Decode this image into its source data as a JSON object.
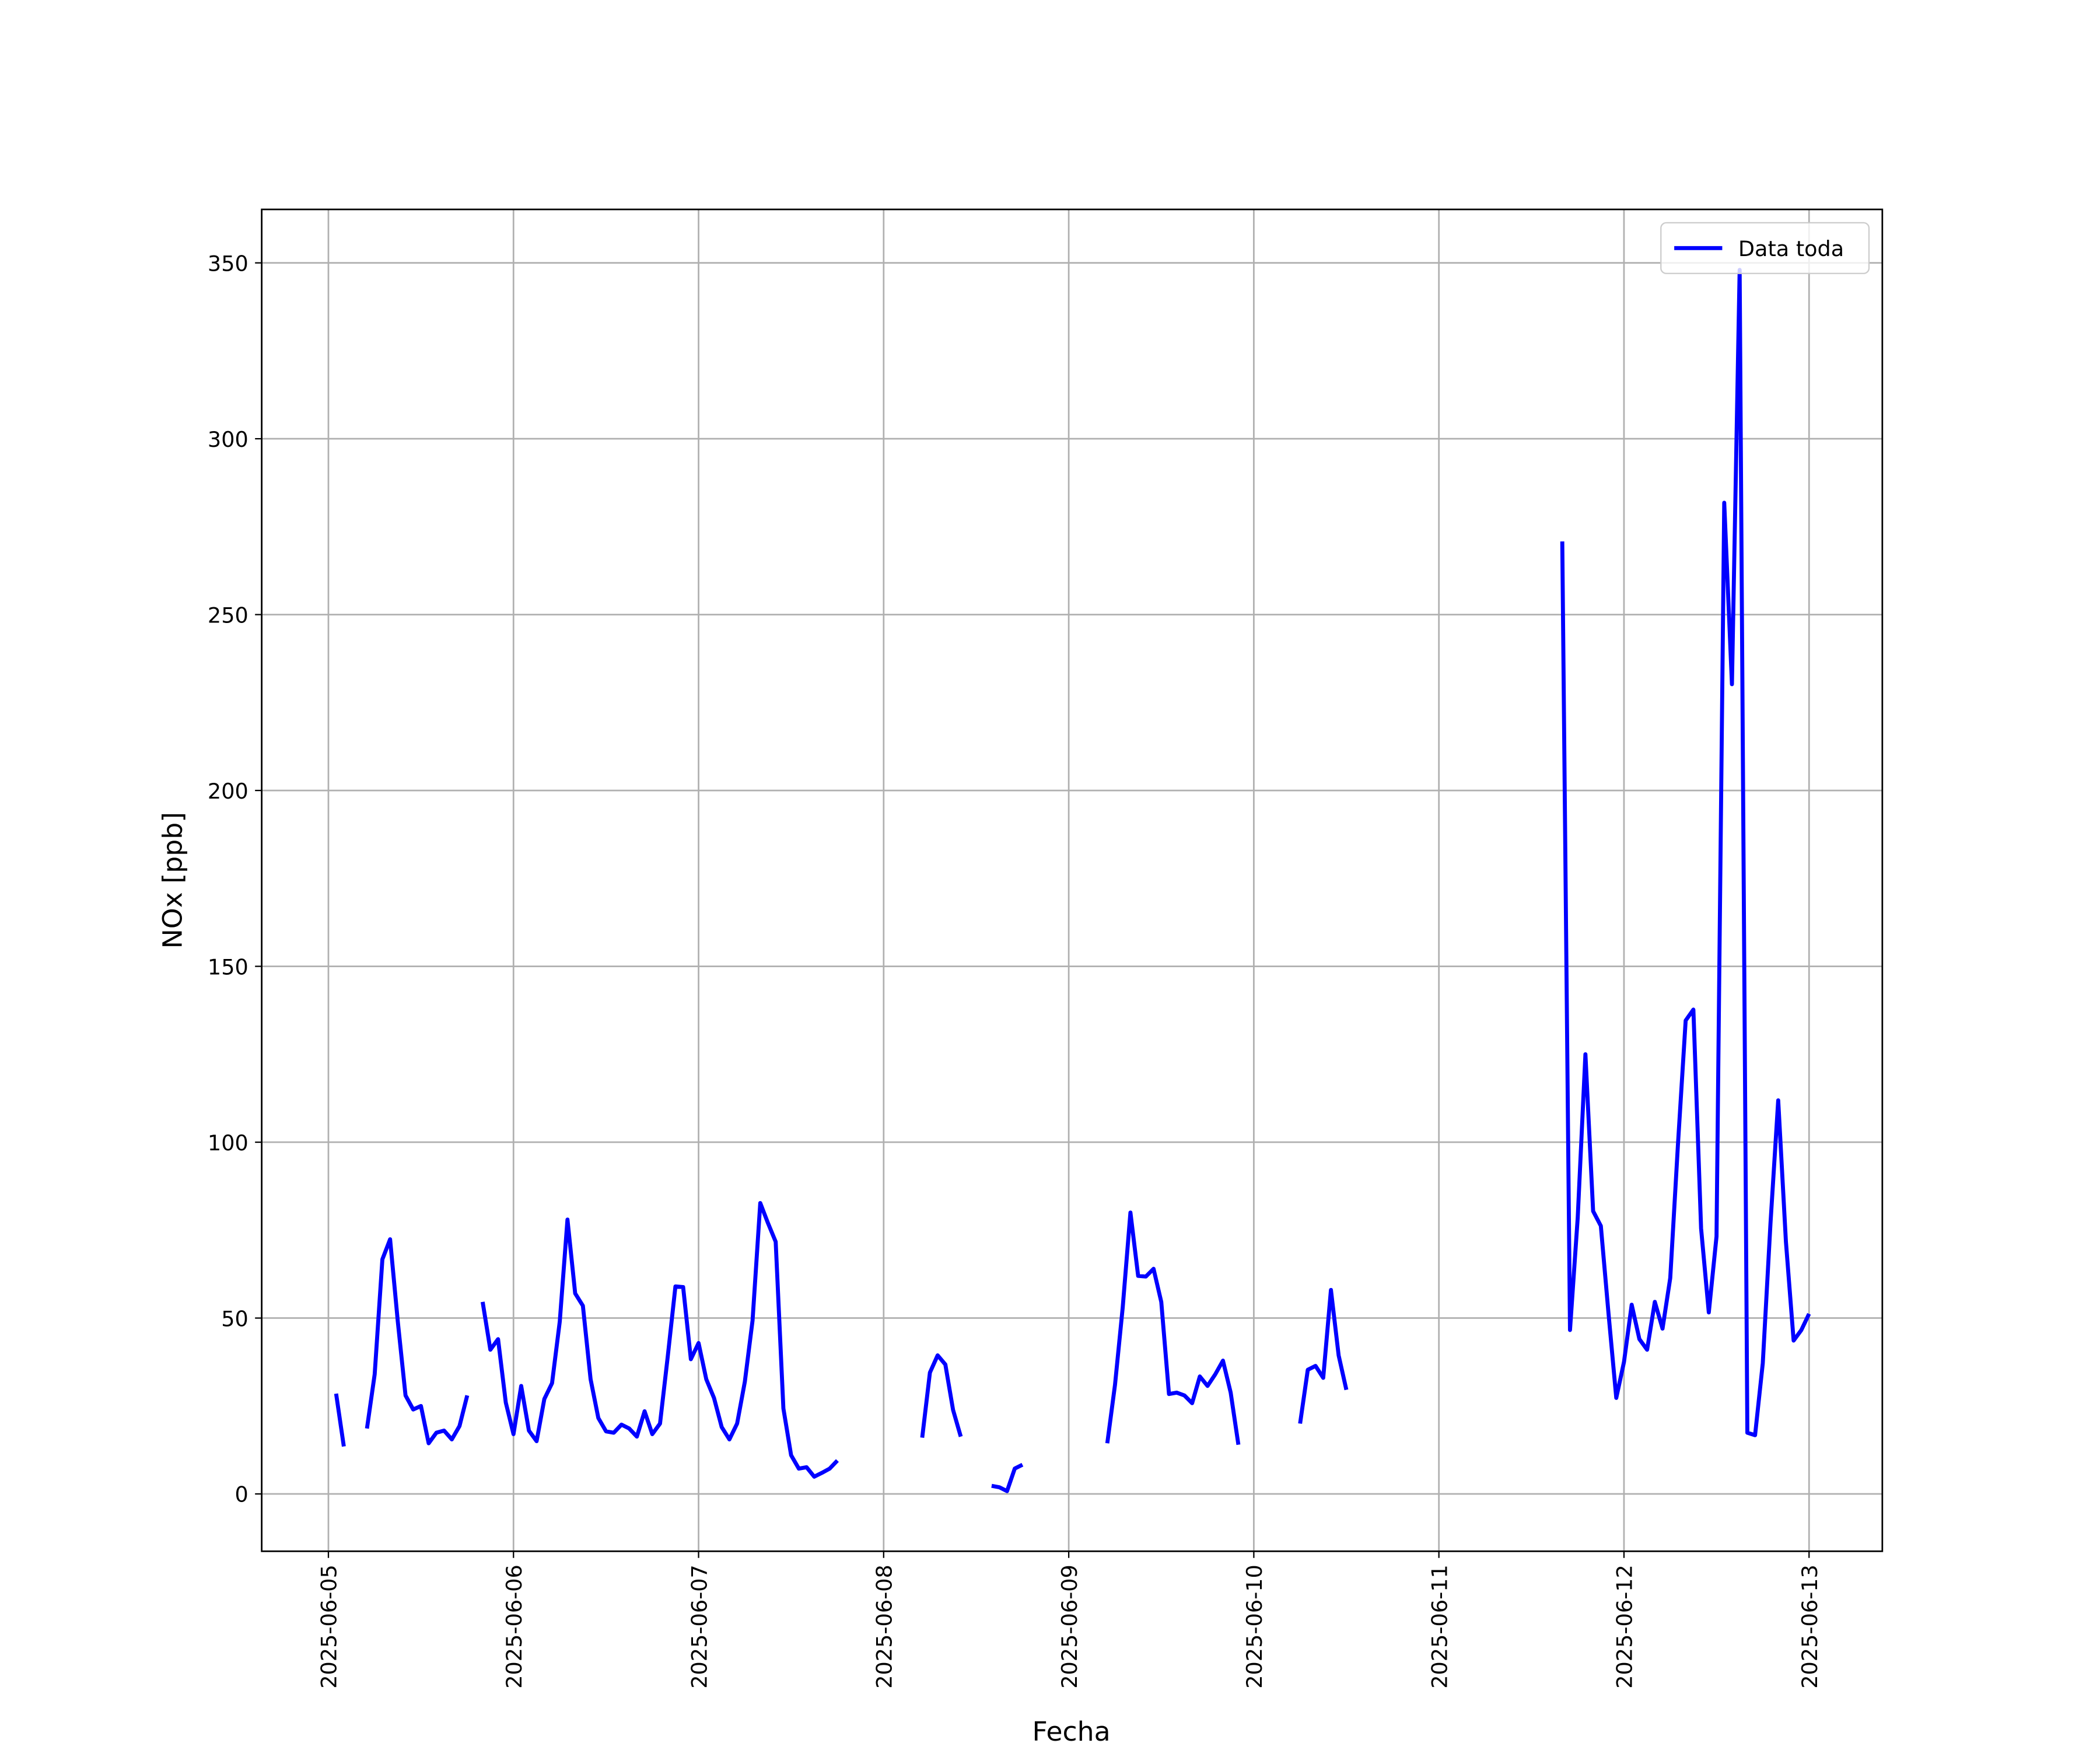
{
  "chart_data": {
    "type": "line",
    "xlabel": "Fecha",
    "ylabel": "NOx [ppb]",
    "xlim": [
      "2025-06-04 15:21",
      "2025-06-13 09:30"
    ],
    "xticks": [
      "2025-06-05",
      "2025-06-06",
      "2025-06-07",
      "2025-06-08",
      "2025-06-09",
      "2025-06-10",
      "2025-06-11",
      "2025-06-12",
      "2025-06-13"
    ],
    "ylim": [
      -16.3,
      365.2
    ],
    "yticks": [
      0,
      50,
      100,
      150,
      200,
      250,
      300,
      350
    ],
    "grid": true,
    "legend": "upper right",
    "x": [
      "2025-06-05 01:00",
      "2025-06-05 02:00",
      "2025-06-05 03:00",
      "2025-06-05 04:00",
      "2025-06-05 05:00",
      "2025-06-05 06:00",
      "2025-06-05 07:00",
      "2025-06-05 08:00",
      "2025-06-05 09:00",
      "2025-06-05 10:00",
      "2025-06-05 11:00",
      "2025-06-05 12:00",
      "2025-06-05 13:00",
      "2025-06-05 14:00",
      "2025-06-05 15:00",
      "2025-06-05 16:00",
      "2025-06-05 17:00",
      "2025-06-05 18:00",
      "2025-06-05 19:00",
      "2025-06-05 20:00",
      "2025-06-05 21:00",
      "2025-06-05 22:00",
      "2025-06-05 23:00",
      "2025-06-06 00:00",
      "2025-06-06 01:00",
      "2025-06-06 02:00",
      "2025-06-06 03:00",
      "2025-06-06 04:00",
      "2025-06-06 05:00",
      "2025-06-06 06:00",
      "2025-06-06 07:00",
      "2025-06-06 08:00",
      "2025-06-06 09:00",
      "2025-06-06 10:00",
      "2025-06-06 11:00",
      "2025-06-06 12:00",
      "2025-06-06 13:00",
      "2025-06-06 14:00",
      "2025-06-06 15:00",
      "2025-06-06 16:00",
      "2025-06-06 17:00",
      "2025-06-06 18:00",
      "2025-06-06 19:00",
      "2025-06-06 20:00",
      "2025-06-06 21:00",
      "2025-06-06 22:00",
      "2025-06-06 23:00",
      "2025-06-07 00:00",
      "2025-06-07 01:00",
      "2025-06-07 02:00",
      "2025-06-07 03:00",
      "2025-06-07 04:00",
      "2025-06-07 05:00",
      "2025-06-07 06:00",
      "2025-06-07 07:00",
      "2025-06-07 08:00",
      "2025-06-07 09:00",
      "2025-06-07 10:00",
      "2025-06-07 11:00",
      "2025-06-07 12:00",
      "2025-06-07 13:00",
      "2025-06-07 14:00",
      "2025-06-07 15:00",
      "2025-06-07 16:00",
      "2025-06-07 17:00",
      "2025-06-07 18:00",
      "2025-06-07 19:00",
      "2025-06-07 20:00",
      "2025-06-07 21:00",
      "2025-06-07 22:00",
      "2025-06-07 23:00",
      "2025-06-08 00:00",
      "2025-06-08 01:00",
      "2025-06-08 02:00",
      "2025-06-08 03:00",
      "2025-06-08 04:00",
      "2025-06-08 05:00",
      "2025-06-08 06:00",
      "2025-06-08 07:00",
      "2025-06-08 08:00",
      "2025-06-08 09:00",
      "2025-06-08 10:00",
      "2025-06-08 11:00",
      "2025-06-08 12:00",
      "2025-06-08 13:00",
      "2025-06-08 14:00",
      "2025-06-08 15:00",
      "2025-06-08 16:00",
      "2025-06-08 17:00",
      "2025-06-08 18:00",
      "2025-06-08 19:00",
      "2025-06-08 20:00",
      "2025-06-08 21:00",
      "2025-06-08 22:00",
      "2025-06-08 23:00",
      "2025-06-09 00:00",
      "2025-06-09 01:00",
      "2025-06-09 02:00",
      "2025-06-09 03:00",
      "2025-06-09 04:00",
      "2025-06-09 05:00",
      "2025-06-09 06:00",
      "2025-06-09 07:00",
      "2025-06-09 08:00",
      "2025-06-09 09:00",
      "2025-06-09 10:00",
      "2025-06-09 11:00",
      "2025-06-09 12:00",
      "2025-06-09 13:00",
      "2025-06-09 14:00",
      "2025-06-09 15:00",
      "2025-06-09 16:00",
      "2025-06-09 17:00",
      "2025-06-09 18:00",
      "2025-06-09 19:00",
      "2025-06-09 20:00",
      "2025-06-09 21:00",
      "2025-06-09 22:00",
      "2025-06-09 23:00",
      "2025-06-10 00:00",
      "2025-06-10 01:00",
      "2025-06-10 02:00",
      "2025-06-10 03:00",
      "2025-06-10 04:00",
      "2025-06-10 05:00",
      "2025-06-10 06:00",
      "2025-06-10 07:00",
      "2025-06-10 08:00",
      "2025-06-10 09:00",
      "2025-06-10 10:00",
      "2025-06-10 11:00",
      "2025-06-10 12:00",
      "2025-06-10 13:00",
      "2025-06-10 14:00",
      "2025-06-10 15:00",
      "2025-06-10 16:00",
      "2025-06-10 17:00",
      "2025-06-10 18:00",
      "2025-06-10 19:00",
      "2025-06-10 20:00",
      "2025-06-10 21:00",
      "2025-06-10 22:00",
      "2025-06-10 23:00",
      "2025-06-11 00:00",
      "2025-06-11 01:00",
      "2025-06-11 02:00",
      "2025-06-11 03:00",
      "2025-06-11 04:00",
      "2025-06-11 05:00",
      "2025-06-11 06:00",
      "2025-06-11 07:00",
      "2025-06-11 08:00",
      "2025-06-11 09:00",
      "2025-06-11 10:00",
      "2025-06-11 11:00",
      "2025-06-11 12:00",
      "2025-06-11 13:00",
      "2025-06-11 14:00",
      "2025-06-11 15:00",
      "2025-06-11 16:00",
      "2025-06-11 17:00",
      "2025-06-11 18:00",
      "2025-06-11 19:00",
      "2025-06-11 20:00",
      "2025-06-11 21:00",
      "2025-06-11 22:00",
      "2025-06-11 23:00",
      "2025-06-12 00:00",
      "2025-06-12 01:00",
      "2025-06-12 02:00",
      "2025-06-12 03:00",
      "2025-06-12 04:00",
      "2025-06-12 05:00",
      "2025-06-12 06:00",
      "2025-06-12 07:00",
      "2025-06-12 08:00",
      "2025-06-12 09:00",
      "2025-06-12 10:00",
      "2025-06-12 11:00",
      "2025-06-12 12:00",
      "2025-06-12 13:00",
      "2025-06-12 14:00",
      "2025-06-12 15:00",
      "2025-06-12 16:00",
      "2025-06-12 17:00",
      "2025-06-12 18:00",
      "2025-06-12 19:00",
      "2025-06-12 20:00",
      "2025-06-12 21:00",
      "2025-06-12 22:00",
      "2025-06-12 23:00",
      "2025-06-13 00:00"
    ],
    "series": [
      {
        "name": "Data toda",
        "color": "#0000ff",
        "values": [
          28.5,
          13.5,
          null,
          null,
          18.6,
          34,
          66.7,
          72.4,
          49,
          28,
          24,
          25,
          14.4,
          17.4,
          18,
          15.5,
          19.3,
          28,
          null,
          54.6,
          41,
          44,
          26,
          17,
          30.7,
          18,
          15,
          27,
          31.5,
          49,
          78,
          57,
          53.5,
          32.6,
          21.6,
          17.8,
          17.4,
          19.7,
          18.6,
          16.3,
          23.5,
          17,
          20,
          39,
          59,
          58.8,
          38.3,
          42.9,
          32.6,
          27.3,
          19,
          15.5,
          20,
          31.9,
          49.3,
          82.7,
          77,
          71.7,
          24.3,
          11,
          7.2,
          7.6,
          4.9,
          6,
          7.2,
          9.5,
          null,
          null,
          null,
          null,
          null,
          null,
          null,
          null,
          null,
          null,
          16,
          34.5,
          39.4,
          36.8,
          23.9,
          16.3,
          null,
          null,
          null,
          2.3,
          1.9,
          0.8,
          7.2,
          8.3,
          null,
          null,
          null,
          null,
          null,
          null,
          null,
          null,
          null,
          null,
          14.4,
          31,
          53,
          80,
          62,
          61.8,
          64,
          54.6,
          28.4,
          28.8,
          28,
          25.8,
          33.4,
          30.7,
          34,
          37.9,
          28.8,
          14,
          null,
          null,
          null,
          null,
          null,
          null,
          null,
          20,
          35.3,
          36.4,
          33,
          58,
          39.4,
          29.6,
          null,
          null,
          null,
          null,
          null,
          null,
          null,
          null,
          null,
          null,
          null,
          null,
          null,
          null,
          null,
          null,
          null,
          null,
          null,
          null,
          null,
          null,
          null,
          null,
          null,
          null,
          null,
          270.8,
          46.6,
          78.5,
          125,
          80.4,
          76.2,
          51.2,
          27.3,
          37.5,
          53.8,
          44,
          41,
          54.6,
          47,
          61.4,
          99.4,
          134.6,
          137.7,
          75.5,
          51.6,
          73.2,
          281.8,
          230.2,
          348,
          17.4,
          16.7,
          37.2,
          77,
          111.9,
          71.7,
          43.6,
          46.6,
          51.2
        ]
      }
    ]
  }
}
